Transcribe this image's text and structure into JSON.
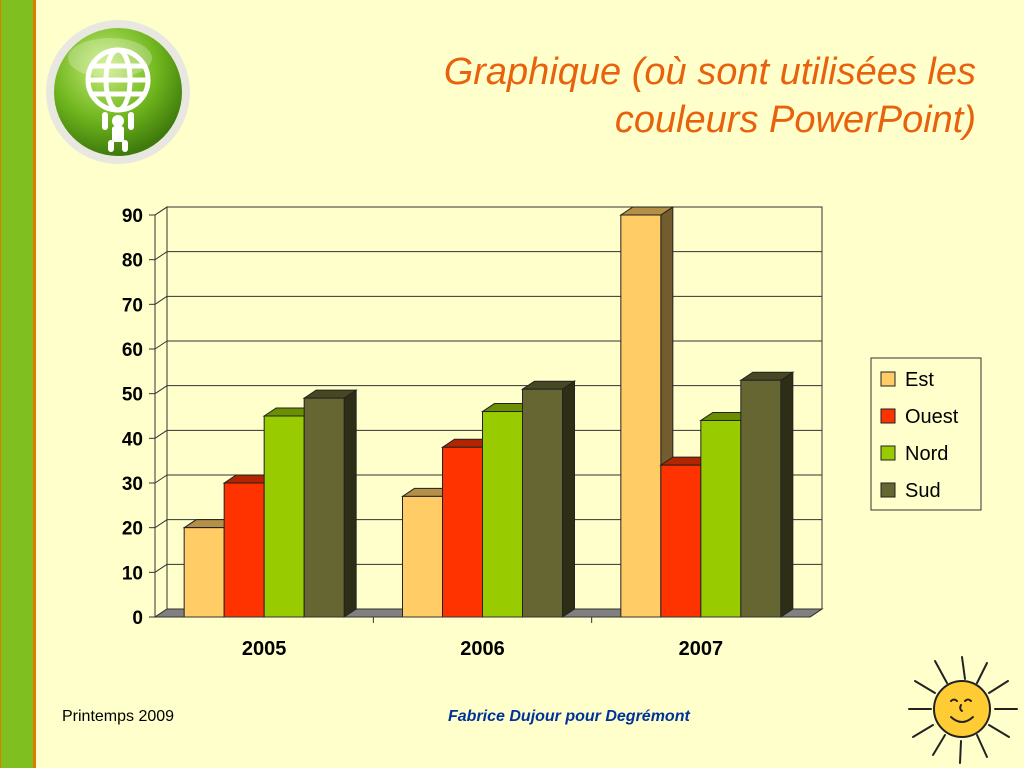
{
  "slide": {
    "title_line1": "Graphique (où sont utilisées les",
    "title_line2": "couleurs PowerPoint)",
    "footer_left": "Printemps 2009",
    "footer_center": "Fabrice Dujour pour Degrémont"
  },
  "colors": {
    "accent_title": "#E8620E",
    "footer_blue": "#003399",
    "background": "#FFFFCC",
    "left_bar": "#7FBF1F"
  },
  "chart_data": {
    "type": "bar",
    "categories": [
      "2005",
      "2006",
      "2007"
    ],
    "series": [
      {
        "name": "Est",
        "values": [
          20,
          27,
          90
        ],
        "color": "#FFCC66"
      },
      {
        "name": "Ouest",
        "values": [
          30,
          38,
          34
        ],
        "color": "#FF3300"
      },
      {
        "name": "Nord",
        "values": [
          45,
          46,
          44
        ],
        "color": "#99CC00"
      },
      {
        "name": "Sud",
        "values": [
          49,
          51,
          53
        ],
        "color": "#666633"
      }
    ],
    "ylim": [
      0,
      90
    ],
    "yticks": [
      "0",
      "10",
      "20",
      "30",
      "40",
      "50",
      "60",
      "70",
      "80",
      "90"
    ],
    "grid": true,
    "legend_position": "right",
    "title": "",
    "xlabel": "",
    "ylabel": ""
  }
}
